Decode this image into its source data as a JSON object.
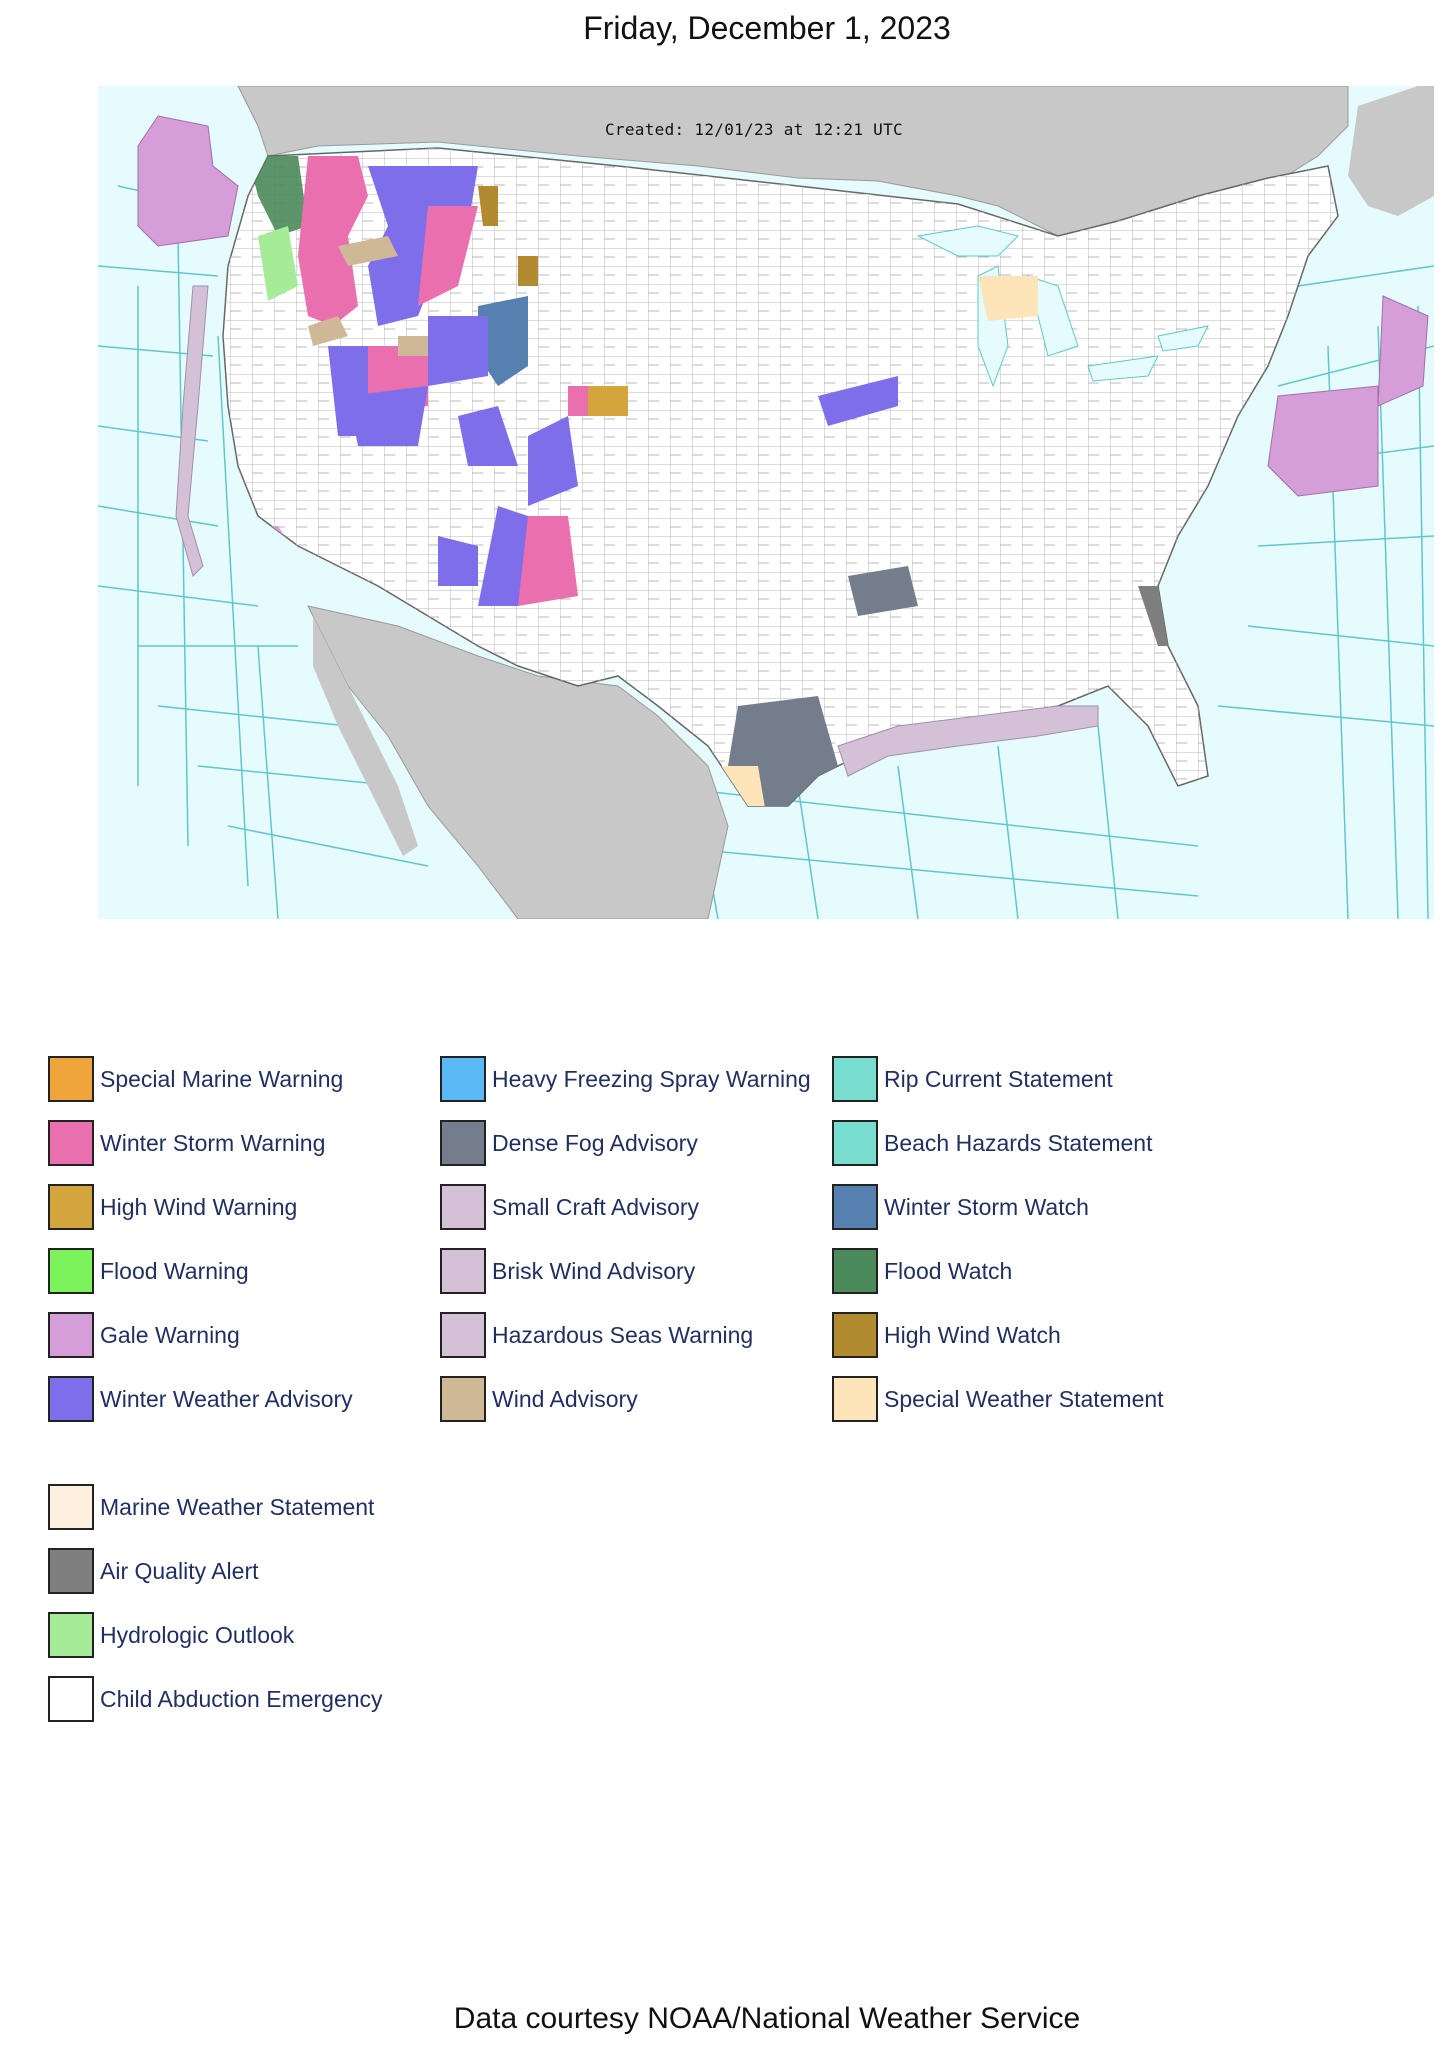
{
  "page": {
    "date": "Friday, December 1, 2023",
    "footer": "Data courtesy NOAA/National Weather Service"
  },
  "map": {
    "created": "Created: 12/01/23 at 12:21 UTC",
    "colors": {
      "ocean": "#e6fbfd",
      "land_outside": "#c8c8c8",
      "land_us": "#ffffff",
      "county_lines": "#b0b0b0",
      "marine_zone_lines": "#5fc7cc"
    }
  },
  "legend": {
    "columns": [
      [
        {
          "label": "Special Marine Warning",
          "color": "#f0a43c"
        },
        {
          "label": "Winter Storm Warning",
          "color": "#ea6fae"
        },
        {
          "label": "High Wind Warning",
          "color": "#d4a53c"
        },
        {
          "label": "Flood Warning",
          "color": "#7cf35a"
        },
        {
          "label": "Gale Warning",
          "color": "#d59ed8"
        },
        {
          "label": "Winter Weather Advisory",
          "color": "#7f6ee9"
        }
      ],
      [
        {
          "label": "Heavy Freezing Spray Warning",
          "color": "#5ab9f5"
        },
        {
          "label": "Dense Fog Advisory",
          "color": "#737d8c"
        },
        {
          "label": "Small Craft Advisory",
          "color": "#d4c1d8"
        },
        {
          "label": "Brisk Wind Advisory",
          "color": "#d4c1d8"
        },
        {
          "label": "Hazardous Seas Warning",
          "color": "#d4c1d8"
        },
        {
          "label": "Wind Advisory",
          "color": "#cfb896"
        }
      ],
      [
        {
          "label": "Rip Current Statement",
          "color": "#78dccf"
        },
        {
          "label": "Beach Hazards Statement",
          "color": "#78dccf"
        },
        {
          "label": "Winter Storm Watch",
          "color": "#5580b0"
        },
        {
          "label": "Flood Watch",
          "color": "#4b8a5a"
        },
        {
          "label": "High Wind Watch",
          "color": "#b28a30"
        },
        {
          "label": "Special Weather Statement",
          "color": "#fde5b9"
        }
      ]
    ],
    "extra": [
      {
        "label": "Marine Weather Statement",
        "color": "#fdf0df"
      },
      {
        "label": "Air Quality Alert",
        "color": "#7f7f7f"
      },
      {
        "label": "Hydrologic Outlook",
        "color": "#a6ec98"
      },
      {
        "label": "Child Abduction Emergency",
        "color": "#ffffff"
      }
    ]
  }
}
